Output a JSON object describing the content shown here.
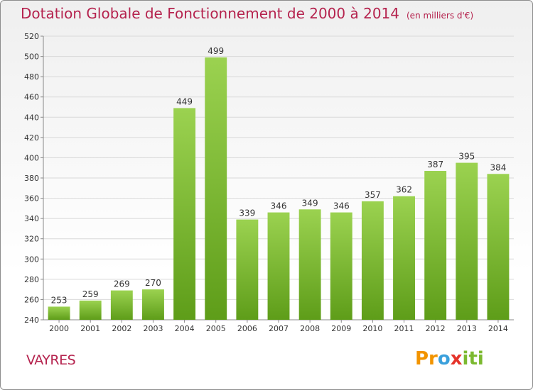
{
  "title": "Dotation Globale de Fonctionnement de 2000 à 2014",
  "subtitle": "(en milliers d'€)",
  "commune": "VAYRES",
  "logo": {
    "text": "Proxiti",
    "parts": [
      "Pr",
      "o",
      "x",
      "iti"
    ]
  },
  "colors": {
    "title": "#b5234e",
    "bar_light": "#9bd250",
    "bar_dark": "#5e9d19",
    "grid": "#d9d9d9",
    "axis": "#888888"
  },
  "chart_data": {
    "type": "bar",
    "title": "Dotation Globale de Fonctionnement de 2000 à 2014",
    "unit": "(en milliers d'€)",
    "categories": [
      "2000",
      "2001",
      "2002",
      "2003",
      "2004",
      "2005",
      "2006",
      "2007",
      "2008",
      "2009",
      "2010",
      "2011",
      "2012",
      "2013",
      "2014"
    ],
    "values": [
      253,
      259,
      269,
      270,
      449,
      499,
      339,
      346,
      349,
      346,
      357,
      362,
      387,
      395,
      384
    ],
    "ylim": [
      240,
      520
    ],
    "yticks": [
      240,
      260,
      280,
      300,
      320,
      340,
      360,
      380,
      400,
      420,
      440,
      460,
      480,
      500,
      520
    ],
    "xlabel": "",
    "ylabel": "",
    "grid": true
  }
}
